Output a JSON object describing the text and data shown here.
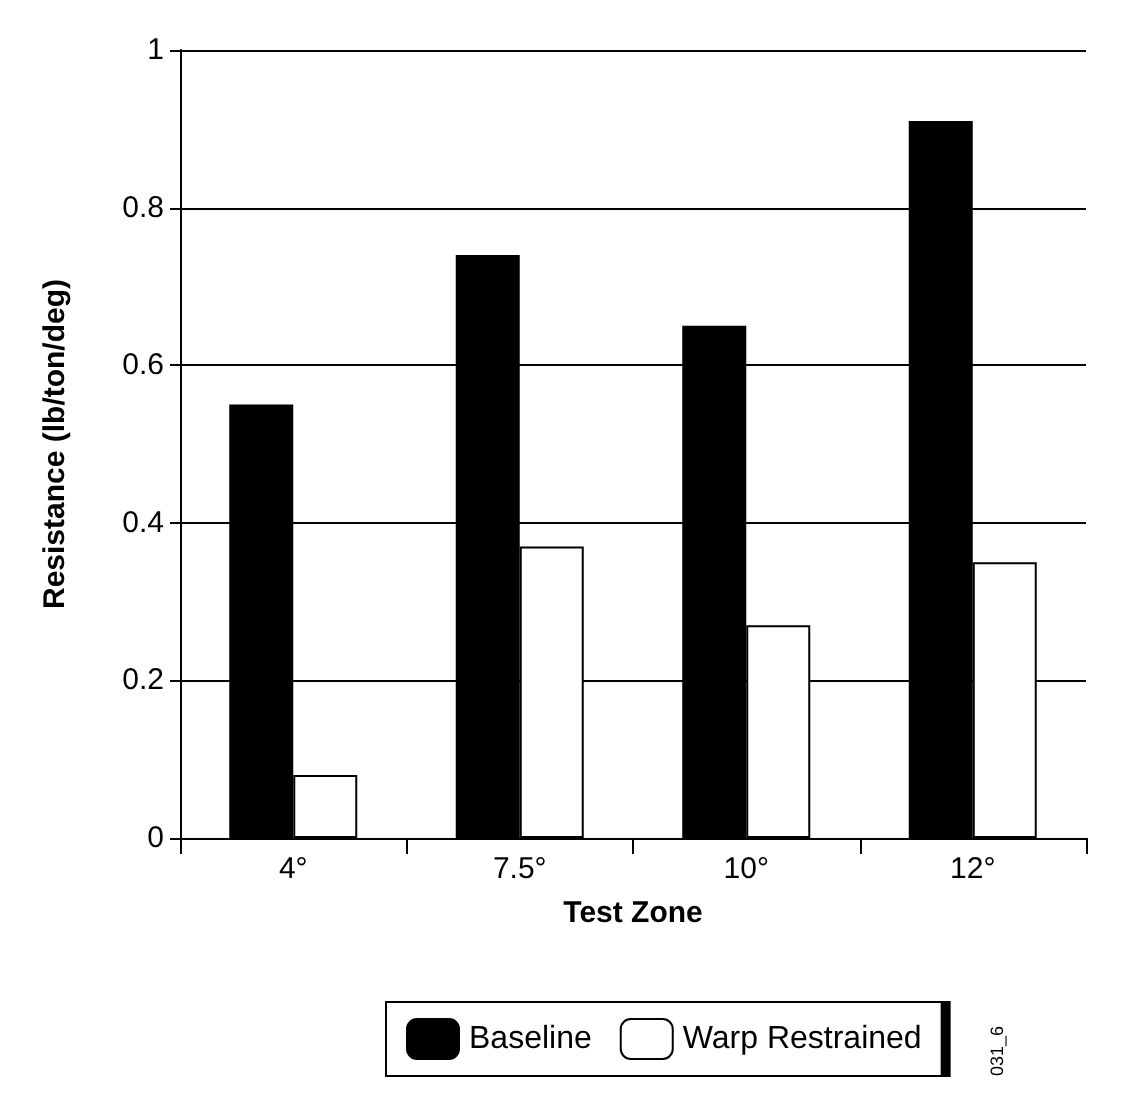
{
  "chart_data": {
    "type": "bar",
    "xlabel": "Test Zone",
    "ylabel": "Resistance (lb/ton/deg)",
    "categories": [
      "4°",
      "7.5°",
      "10°",
      "12°"
    ],
    "series": [
      {
        "name": "Baseline",
        "color": "#000000",
        "values": [
          0.55,
          0.74,
          0.65,
          0.91
        ]
      },
      {
        "name": "Warp Restrained",
        "color": "#ffffff",
        "values": [
          0.08,
          0.37,
          0.27,
          0.35
        ]
      }
    ],
    "ylim": [
      0,
      1
    ],
    "yticks": [
      0,
      0.2,
      0.4,
      0.6,
      0.8,
      1
    ],
    "grid": "y",
    "legend": "bottom",
    "annotations": [
      "031_6"
    ]
  }
}
